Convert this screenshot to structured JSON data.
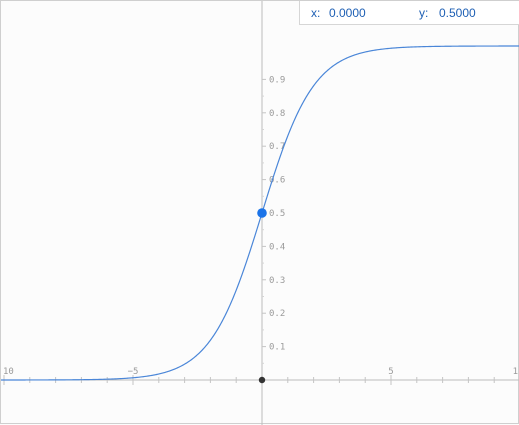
{
  "readout": {
    "x_label": "x:",
    "x_value": "0.0000",
    "y_label": "y:",
    "y_value": "0.5000"
  },
  "colors": {
    "curve": "#4a86d8",
    "trace_point": "#1a73e8",
    "axis": "#bdbdbd",
    "origin_point": "#333333"
  },
  "chart_data": {
    "type": "line",
    "function": "sigmoid",
    "series": [
      {
        "x": [
          -10,
          -9,
          -8,
          -7,
          -6,
          -5,
          -4,
          -3,
          -2,
          -1,
          0,
          1,
          2,
          3,
          4,
          5,
          6,
          7,
          8,
          9,
          10
        ],
        "values": [
          0.0,
          0.0001,
          0.0003,
          0.0009,
          0.0025,
          0.0067,
          0.018,
          0.0474,
          0.1192,
          0.2689,
          0.5,
          0.7311,
          0.8808,
          0.9526,
          0.982,
          0.9933,
          0.9975,
          0.9991,
          0.9997,
          0.9999,
          1.0
        ]
      }
    ],
    "xlim": [
      -10,
      10
    ],
    "ylim": [
      -0.1,
      1.1
    ],
    "x_tick_labels": [
      "10",
      "−5",
      "5",
      "1"
    ],
    "y_tick_labels": [
      "0.1",
      "0.2",
      "0.3",
      "0.4",
      "0.5",
      "0.6",
      "0.7",
      "0.8",
      "0.9"
    ],
    "trace_point": {
      "x": 0,
      "y": 0.5
    },
    "origin_point": {
      "x": 0,
      "y": 0
    },
    "grid": false
  }
}
